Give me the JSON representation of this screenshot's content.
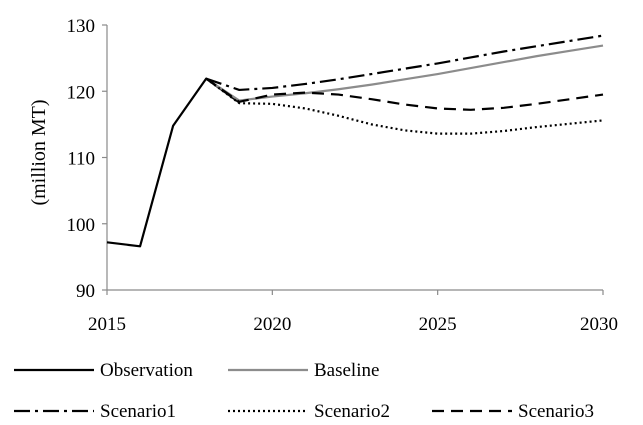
{
  "chart_data": {
    "type": "line",
    "title": "",
    "xlabel": "",
    "ylabel": "(million MT)",
    "xlim": [
      2015,
      2030
    ],
    "ylim": [
      90,
      130
    ],
    "x_ticks": [
      2015,
      2020,
      2025,
      2030
    ],
    "y_ticks": [
      90,
      100,
      110,
      120,
      130
    ],
    "grid": false,
    "legend_position": "bottom",
    "series": [
      {
        "name": "Observation",
        "color": "#000000",
        "dash": "solid",
        "x": [
          2015,
          2016,
          2017,
          2018,
          2019
        ],
        "y": [
          97.2,
          96.6,
          114.8,
          121.9,
          118.3
        ]
      },
      {
        "name": "Baseline",
        "color": "#8c8c8c",
        "dash": "solid",
        "x": [
          2018,
          2019,
          2020,
          2021,
          2022,
          2023,
          2024,
          2025,
          2026,
          2027,
          2028,
          2029,
          2030
        ],
        "y": [
          121.9,
          118.6,
          119.2,
          119.7,
          120.3,
          121.0,
          121.8,
          122.6,
          123.5,
          124.4,
          125.3,
          126.1,
          126.9
        ]
      },
      {
        "name": "Scenario1",
        "color": "#000000",
        "dash": "dashdot",
        "x": [
          2018,
          2019,
          2020,
          2021,
          2022,
          2023,
          2024,
          2025,
          2026,
          2027,
          2028,
          2029,
          2030
        ],
        "y": [
          121.9,
          120.2,
          120.5,
          121.1,
          121.8,
          122.6,
          123.4,
          124.2,
          125.1,
          126.0,
          126.8,
          127.6,
          128.4
        ]
      },
      {
        "name": "Scenario2",
        "color": "#000000",
        "dash": "dotted",
        "x": [
          2018,
          2019,
          2020,
          2021,
          2022,
          2023,
          2024,
          2025,
          2026,
          2027,
          2028,
          2029,
          2030
        ],
        "y": [
          121.9,
          118.2,
          118.1,
          117.4,
          116.3,
          115.0,
          114.1,
          113.6,
          113.6,
          114.0,
          114.6,
          115.1,
          115.6
        ]
      },
      {
        "name": "Scenario3",
        "color": "#000000",
        "dash": "dashed",
        "x": [
          2018,
          2019,
          2020,
          2021,
          2022,
          2023,
          2024,
          2025,
          2026,
          2027,
          2028,
          2029,
          2030
        ],
        "y": [
          121.9,
          118.4,
          119.5,
          119.8,
          119.5,
          118.8,
          118.0,
          117.4,
          117.2,
          117.5,
          118.1,
          118.8,
          119.5
        ]
      }
    ],
    "legend": [
      [
        "Observation",
        "Baseline"
      ],
      [
        "Scenario1",
        "Scenario2",
        "Scenario3"
      ]
    ]
  }
}
